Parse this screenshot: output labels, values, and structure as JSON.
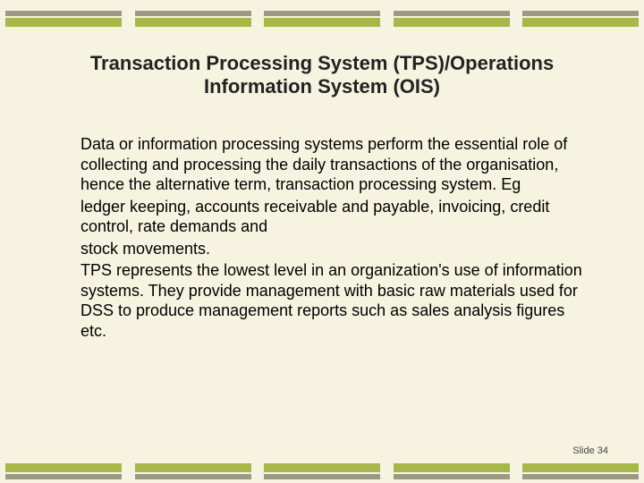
{
  "slide": {
    "background_color": "#f6f4e0",
    "title": "Transaction Processing System (TPS)/Operations Information System (OIS)",
    "title_fontsize": 22,
    "title_color": "#222222",
    "paragraphs": [
      "Data or information processing systems perform the essential role of collecting and processing the daily transactions of the organisation, hence the alternative term, transaction processing system. Eg",
      "ledger keeping, accounts receivable and payable, invoicing, credit control, rate demands and",
      "stock movements.",
      "TPS represents the lowest level in an organization's use of information systems. They provide management with basic raw materials used for DSS to produce management reports such as sales analysis figures etc."
    ],
    "body_fontsize": 18,
    "body_color": "#000000",
    "footer": "Slide 34",
    "footer_fontsize": 11,
    "decoration": {
      "block_count": 5,
      "block_width": 130,
      "thin_bar_height": 6,
      "thick_bar_height": 10,
      "thin_bar_color": "#9a9a84",
      "thick_bar_color": "#a6b84a"
    }
  }
}
